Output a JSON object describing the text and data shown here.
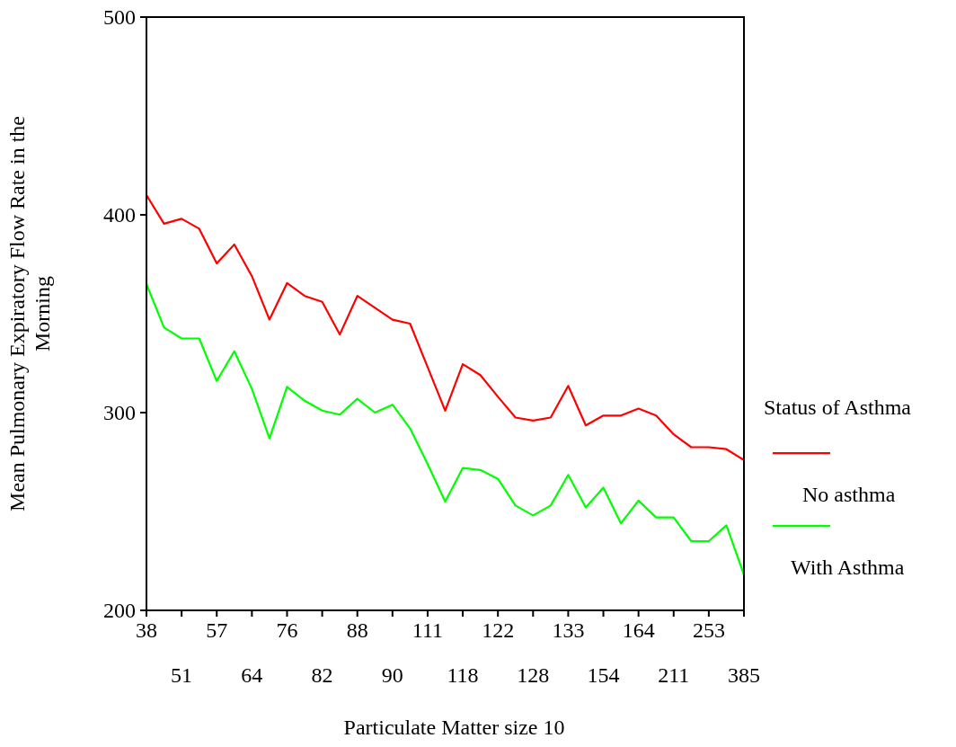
{
  "chart_data": {
    "type": "line",
    "xlabel": "Particulate Matter size 10",
    "ylabel": "Mean Pulmonary Expiratory Flow Rate in the Morning",
    "legend_title": "Status of Asthma",
    "legend": "right",
    "grid": false,
    "marker": "none",
    "line_style": "solid",
    "categories": [
      "38",
      null,
      "51",
      null,
      "57",
      null,
      "64",
      null,
      "76",
      null,
      "82",
      null,
      "88",
      null,
      "90",
      null,
      "111",
      null,
      "118",
      null,
      "122",
      null,
      "128",
      null,
      "133",
      null,
      "154",
      null,
      "164",
      null,
      "211",
      null,
      "253",
      null,
      "385"
    ],
    "ylim": [
      200,
      500
    ],
    "yticks": [
      200,
      300,
      400,
      500
    ],
    "series": [
      {
        "name": "No asthma",
        "color": "#ff0000",
        "values": [
          410,
          395.5,
          398,
          393,
          375.5,
          385,
          369,
          347,
          365.5,
          359,
          356,
          339.5,
          359,
          353,
          347,
          345,
          323,
          301,
          324.5,
          319,
          308,
          297.5,
          296,
          297.5,
          313.5,
          293.5,
          298.5,
          298.5,
          302,
          298.5,
          289,
          282.5,
          282.5,
          281.5,
          276
        ]
      },
      {
        "name": "With Asthma",
        "color": "#00ff00",
        "values": [
          365,
          343,
          337.5,
          337.5,
          316,
          331,
          312,
          287,
          313,
          306,
          301,
          299,
          307,
          300,
          304,
          292,
          274,
          255,
          272,
          271,
          266.5,
          253,
          248,
          253,
          268.5,
          252,
          262,
          244,
          255.5,
          247,
          247,
          235,
          235,
          243,
          218
        ]
      }
    ]
  }
}
